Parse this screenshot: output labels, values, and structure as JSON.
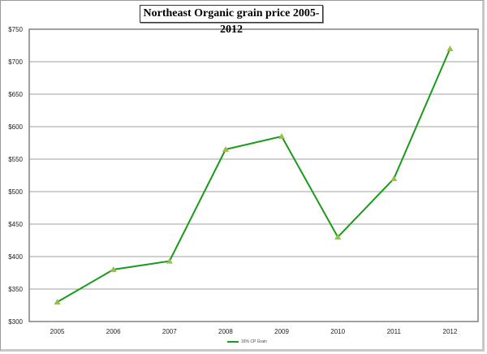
{
  "chart_data": {
    "type": "line",
    "title": "Northeast Organic grain price 2005-2012",
    "xlabel": "",
    "ylabel": "",
    "categories": [
      "2005",
      "2006",
      "2007",
      "2008",
      "2009",
      "2010",
      "2011",
      "2012"
    ],
    "series": [
      {
        "name": "16% CP Grain",
        "values": [
          330,
          380,
          393,
          565,
          585,
          430,
          520,
          720
        ],
        "color": "#1a9a1a",
        "marker": "triangle",
        "marker_color": "#9bbb59"
      }
    ],
    "ylim": [
      300,
      750
    ],
    "yticks": [
      300,
      350,
      400,
      450,
      500,
      550,
      600,
      650,
      700,
      750
    ],
    "ytick_labels": [
      "$300",
      "$350",
      "$400",
      "$450",
      "$500",
      "$550",
      "$600",
      "$650",
      "$700",
      "$750"
    ],
    "grid": "horizontal",
    "legend_position": "bottom"
  }
}
